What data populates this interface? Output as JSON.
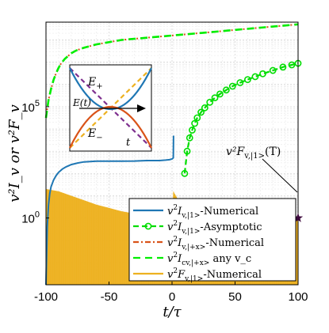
{
  "chart_data": {
    "type": "line",
    "xlabel": "t/τ",
    "ylabel": "v²I_v or v²F_v",
    "xlim": [
      -100,
      100
    ],
    "ylim_log10": [
      -3,
      8.8
    ],
    "yscale": "log",
    "grid": true,
    "legend_position": "bottom-right",
    "x_ticks": [
      "-100",
      "-50",
      "0",
      "50",
      "100"
    ],
    "y_ticks": [
      {
        "base": "10",
        "exp": "0",
        "log": 0
      },
      {
        "base": "10",
        "exp": "5",
        "log": 5
      }
    ],
    "series": [
      {
        "name": "v²I_{v,|1>}-Numerical",
        "color": "#1f77b4",
        "style": "solid",
        "x": [
          -100,
          -99,
          -98,
          -97,
          -96,
          -94,
          -92,
          -90,
          -87,
          -84,
          -80,
          -75,
          -70,
          -60,
          -50,
          -40,
          -30,
          -20,
          -15,
          -10,
          -5,
          -2,
          0,
          1,
          1.2
        ],
        "log10y": [
          -3,
          -0.4,
          0.6,
          1.1,
          1.4,
          1.7,
          1.9,
          2.05,
          2.2,
          2.3,
          2.4,
          2.47,
          2.52,
          2.55,
          2.55,
          2.55,
          2.56,
          2.58,
          2.58,
          2.58,
          2.6,
          2.62,
          2.65,
          2.7,
          3.7
        ]
      },
      {
        "name": "v²I_{v,|1>}-Asymptotic",
        "color": "#00dd00",
        "style": "dash-circle",
        "x": [
          10,
          12,
          14,
          16,
          18,
          20,
          23,
          26,
          30,
          34,
          38,
          43,
          48,
          54,
          60,
          66,
          72,
          80,
          88,
          95,
          100
        ],
        "log10y": [
          2.0,
          3.0,
          3.6,
          3.95,
          4.25,
          4.5,
          4.75,
          4.95,
          5.2,
          5.4,
          5.57,
          5.75,
          5.92,
          6.08,
          6.22,
          6.35,
          6.48,
          6.63,
          6.78,
          6.88,
          6.95
        ]
      },
      {
        "name": "v²I_{v,|+x>}-Numerical",
        "color": "#d95319",
        "style": "dashdot",
        "x": [
          -100,
          -98,
          -96,
          -94,
          -92,
          -90,
          -88,
          -85,
          -82,
          -80,
          -77,
          -75,
          -70,
          -60,
          -50,
          -40,
          -30,
          -20,
          -10,
          0,
          10,
          20,
          30,
          40,
          50,
          60,
          70,
          80,
          90,
          100
        ],
        "log10y": [
          4.5,
          5.3,
          5.8,
          6.2,
          6.5,
          6.75,
          6.95,
          7.15,
          7.3,
          7.4,
          7.5,
          7.55,
          7.65,
          7.8,
          7.9,
          8.0,
          8.05,
          8.1,
          8.15,
          8.2,
          8.25,
          8.3,
          8.35,
          8.4,
          8.45,
          8.5,
          8.55,
          8.6,
          8.65,
          8.7
        ]
      },
      {
        "name": "v²I_{cv,|+x>} any v_c",
        "color": "#00ee00",
        "style": "dashed",
        "x": [
          -100,
          -98,
          -96,
          -94,
          -92,
          -90,
          -88,
          -85,
          -82,
          -80,
          -77,
          -75,
          -70,
          -60,
          -50,
          -40,
          -30,
          -20,
          -10,
          0,
          10,
          20,
          30,
          40,
          50,
          60,
          70,
          80,
          90,
          100
        ],
        "log10y": [
          4.5,
          5.3,
          5.8,
          6.2,
          6.5,
          6.75,
          6.95,
          7.15,
          7.3,
          7.4,
          7.5,
          7.55,
          7.65,
          7.8,
          7.9,
          8.0,
          8.05,
          8.1,
          8.15,
          8.2,
          8.25,
          8.3,
          8.35,
          8.4,
          8.45,
          8.5,
          8.55,
          8.6,
          8.65,
          8.7
        ]
      },
      {
        "name": "v²F_{v,|1>}-Numerical",
        "color": "#edb120",
        "style": "filled-oscillation",
        "x": [
          -100,
          -90,
          -80,
          -70,
          -60,
          -50,
          -40,
          -30,
          -20,
          -10,
          0,
          1,
          5,
          10,
          15,
          20,
          30,
          40,
          50,
          60,
          70,
          80,
          90,
          100
        ],
        "log10y_upper": [
          1.3,
          1.2,
          1.0,
          0.8,
          0.6,
          0.45,
          0.3,
          0.2,
          0.1,
          0.05,
          0.0,
          1.2,
          0.8,
          0.5,
          0.35,
          0.25,
          0.15,
          0.1,
          0.07,
          0.05,
          0.03,
          0.02,
          0.01,
          0.0
        ]
      }
    ],
    "legend": [
      {
        "base": "v",
        "sup": "2",
        "mid": "I",
        "sub": "v,|1>",
        "suffix": "-Numerical",
        "color": "#1f77b4",
        "style": "solid"
      },
      {
        "base": "v",
        "sup": "2",
        "mid": "I",
        "sub": "v,|1>",
        "suffix": "-Asymptotic",
        "color": "#00dd00",
        "style": "dash-circle"
      },
      {
        "base": "v",
        "sup": "2",
        "mid": "I",
        "sub": "v,|+x>",
        "suffix": "-Numerical",
        "color": "#d95319",
        "style": "dashdot"
      },
      {
        "base": "v",
        "sup": "2",
        "mid": "I",
        "sub": "cv,|+x>",
        "suffix": " any v_c",
        "color": "#00ee00",
        "style": "dashed"
      },
      {
        "base": "v",
        "sup": "2",
        "mid": "F",
        "sub": "v,|1>",
        "suffix": "-Numerical",
        "color": "#edb120",
        "style": "solid"
      }
    ],
    "annotation": {
      "text_main": "v²F",
      "text_sub": "v,|1>",
      "text_tail": "(T)",
      "x": 100,
      "log10y": 0
    },
    "inset": {
      "labels": {
        "e_plus": "E",
        "e_plus_sub": "+",
        "e_minus": "E",
        "e_minus_sub": "−",
        "et": "E(t)",
        "t": "t"
      },
      "colors": {
        "upper": "#1f77b4",
        "lower": "#d95319",
        "diag1": "#7e2f8e",
        "diag2": "#edb120"
      }
    }
  }
}
